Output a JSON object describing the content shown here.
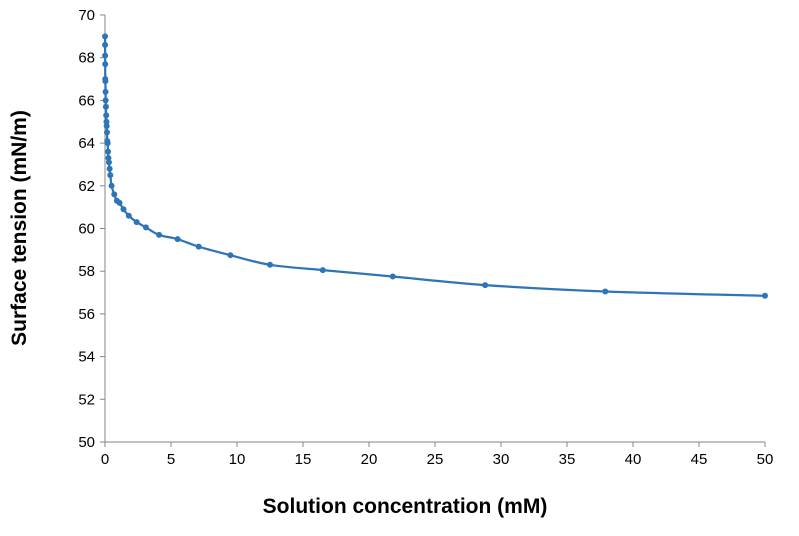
{
  "chart_data": {
    "type": "line",
    "title": "",
    "xlabel": "Solution concentration (mM)",
    "ylabel": "Surface tension (mN/m)",
    "xlim": [
      0,
      50
    ],
    "ylim": [
      50,
      70
    ],
    "xticks": [
      0,
      5,
      10,
      15,
      20,
      25,
      30,
      35,
      40,
      45,
      50
    ],
    "yticks": [
      50,
      52,
      54,
      56,
      58,
      60,
      62,
      64,
      66,
      68,
      70
    ],
    "grid": false,
    "legend": "none",
    "series": [
      {
        "color": "#2e75b6",
        "markers": true,
        "smooth": true,
        "x": [
          0.003,
          0.006,
          0.01,
          0.015,
          0.02,
          0.03,
          0.04,
          0.05,
          0.07,
          0.09,
          0.11,
          0.13,
          0.15,
          0.17,
          0.2,
          0.23,
          0.26,
          0.3,
          0.35,
          0.4,
          0.5,
          0.7,
          0.9,
          1.1,
          1.4,
          1.8,
          2.4,
          3.1,
          4.1,
          5.5,
          7.1,
          9.5,
          12.5,
          16.5,
          21.8,
          28.8,
          37.9,
          50.0
        ],
        "y": [
          69.0,
          68.6,
          68.1,
          67.7,
          67.0,
          66.9,
          66.4,
          66.0,
          65.7,
          65.3,
          65.0,
          64.8,
          64.5,
          64.1,
          64.0,
          63.6,
          63.3,
          63.1,
          62.8,
          62.5,
          62.0,
          61.6,
          61.3,
          61.2,
          60.9,
          60.6,
          60.3,
          60.05,
          59.7,
          59.5,
          59.15,
          58.75,
          58.3,
          58.05,
          57.75,
          57.35,
          57.05,
          56.85
        ]
      }
    ]
  }
}
